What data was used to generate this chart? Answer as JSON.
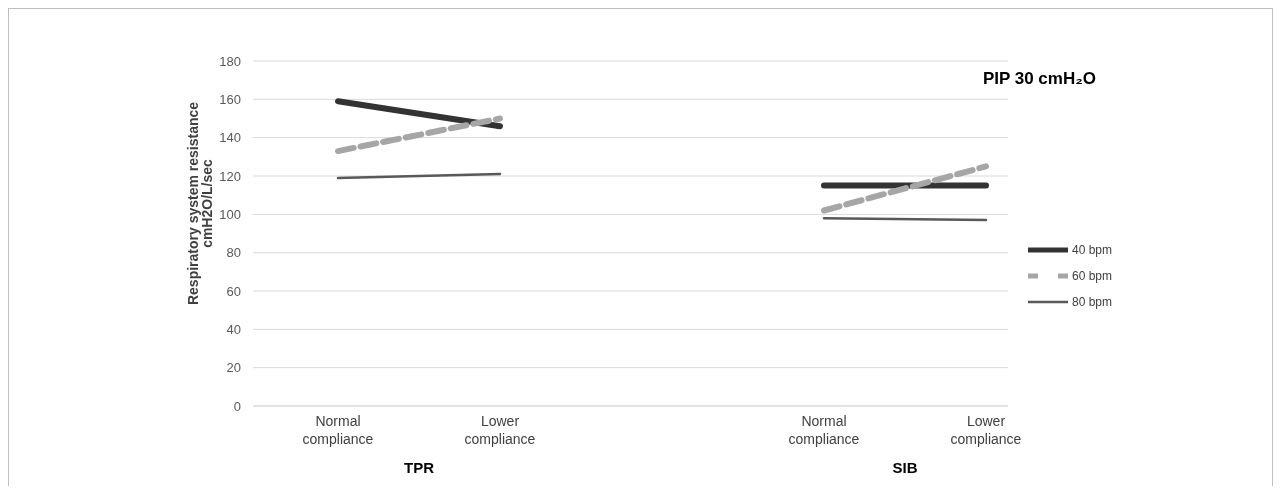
{
  "chart_data": {
    "type": "line",
    "title": "PIP 30 cmH₂O",
    "ylabel": "Respiratory  system resistance\ncmH2O/L/sec",
    "categories": [
      "Normal compliance",
      "Lower compliance",
      null,
      "Normal compliance",
      "Lower compliance"
    ],
    "series": [
      {
        "name": "40 bpm",
        "color": "#333333",
        "line_style": "solid",
        "values": [
          159,
          146,
          null,
          115,
          115
        ]
      },
      {
        "name": "60 bpm",
        "color": "#a6a6a6",
        "line_style": "dashed",
        "values": [
          133,
          150,
          null,
          102,
          125
        ]
      },
      {
        "name": "80 bpm",
        "color": "#595959",
        "line_style": "solid",
        "values": [
          119,
          121,
          null,
          98,
          97
        ]
      }
    ],
    "ylim": [
      0,
      180
    ],
    "yticks": [
      0,
      20,
      40,
      60,
      80,
      100,
      120,
      140,
      160,
      180
    ],
    "grid": "y",
    "legend": "right",
    "marker": "none",
    "annotations": [
      "TPR",
      "SIB"
    ]
  }
}
